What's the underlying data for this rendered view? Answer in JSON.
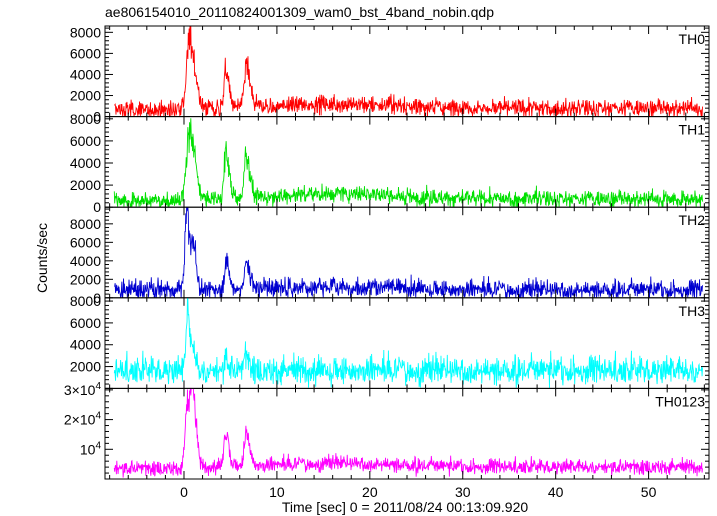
{
  "chart_data": {
    "type": "line",
    "title": "ae806154010_20110824001309_wam0_bst_4band_nobin.qdp",
    "xlabel": "Time [sec] 0 = 2011/08/24 00:13:09.920",
    "ylabel": "Counts/sec",
    "xlim": [
      -8.5,
      56.5
    ],
    "x_major_ticks": [
      0,
      10,
      20,
      30,
      40,
      50
    ],
    "x_tick_labels": [
      "0",
      "10",
      "20",
      "30",
      "40",
      "50"
    ],
    "x_minor_step": 2,
    "grid": false,
    "panels": [
      {
        "name": "TH0",
        "color": "#ff0000",
        "ylim": [
          0,
          8600
        ],
        "yticks": [
          2000,
          4000,
          6000,
          8000
        ],
        "ytick_labels": [
          "2000",
          "4000",
          "6000",
          "8000"
        ],
        "bottom_label": "0",
        "baseline": 800,
        "noise": 420,
        "peaks": [
          {
            "t": 0.6,
            "height": 6800,
            "width": 0.55
          },
          {
            "t": 4.5,
            "height": 3400,
            "width": 0.35
          },
          {
            "t": 6.7,
            "height": 4000,
            "width": 0.4
          }
        ],
        "bump": {
          "t": 17,
          "height": 400,
          "width": 6
        },
        "pre_flare": 650
      },
      {
        "name": "TH1",
        "color": "#00e000",
        "ylim": [
          0,
          8200
        ],
        "yticks": [
          2000,
          4000,
          6000,
          8000
        ],
        "ytick_labels": [
          "2000",
          "4000",
          "6000",
          "8000"
        ],
        "bottom_label": "0",
        "baseline": 750,
        "noise": 380,
        "peaks": [
          {
            "t": 0.6,
            "height": 6500,
            "width": 0.55
          },
          {
            "t": 4.5,
            "height": 4200,
            "width": 0.35
          },
          {
            "t": 6.7,
            "height": 3800,
            "width": 0.4
          }
        ],
        "bump": {
          "t": 17,
          "height": 500,
          "width": 6
        },
        "pre_flare": 600
      },
      {
        "name": "TH2",
        "color": "#0000d0",
        "ylim": [
          0,
          9800
        ],
        "yticks": [
          2000,
          4000,
          6000,
          8000
        ],
        "ytick_labels": [
          "2000",
          "4000",
          "6000",
          "8000"
        ],
        "bottom_label": "0",
        "baseline": 900,
        "noise": 520,
        "peaks": [
          {
            "t": 0.3,
            "height": 8000,
            "width": 0.35
          },
          {
            "t": 1.0,
            "height": 5000,
            "width": 0.3
          },
          {
            "t": 4.5,
            "height": 3200,
            "width": 0.3
          },
          {
            "t": 6.7,
            "height": 2600,
            "width": 0.4
          }
        ],
        "bump": {
          "t": 17,
          "height": 300,
          "width": 6
        },
        "pre_flare": 800
      },
      {
        "name": "TH3",
        "color": "#00ffff",
        "ylim": [
          0,
          8300
        ],
        "yticks": [
          2000,
          4000,
          6000,
          8000
        ],
        "ytick_labels": [
          "2000",
          "4000",
          "6000",
          "8000"
        ],
        "bottom_label": "",
        "baseline": 1700,
        "noise": 650,
        "peaks": [
          {
            "t": 0.35,
            "height": 6500,
            "width": 0.25
          },
          {
            "t": 1.0,
            "height": 1800,
            "width": 0.3
          },
          {
            "t": 4.5,
            "height": 1200,
            "width": 0.3
          },
          {
            "t": 6.7,
            "height": 1400,
            "width": 0.4
          }
        ],
        "bump": {
          "t": 17,
          "height": 0,
          "width": 6
        },
        "pre_flare": 1700
      },
      {
        "name": "TH0123",
        "color": "#ff00ff",
        "ylim": [
          0,
          30500
        ],
        "yticks": [
          10000,
          20000,
          30000
        ],
        "ytick_labels_html": [
          [
            "10",
            "4",
            ""
          ],
          [
            "2×10",
            "4",
            ""
          ],
          [
            "3×10",
            "4",
            ""
          ]
        ],
        "bottom_label": "",
        "baseline": 4200,
        "noise": 1300,
        "peaks": [
          {
            "t": 0.4,
            "height": 22000,
            "width": 0.45
          },
          {
            "t": 1.0,
            "height": 17000,
            "width": 0.35
          },
          {
            "t": 4.5,
            "height": 11000,
            "width": 0.35
          },
          {
            "t": 6.7,
            "height": 10500,
            "width": 0.4
          }
        ],
        "bump": {
          "t": 17,
          "height": 1200,
          "width": 6
        },
        "pre_flare": 3800
      }
    ]
  }
}
